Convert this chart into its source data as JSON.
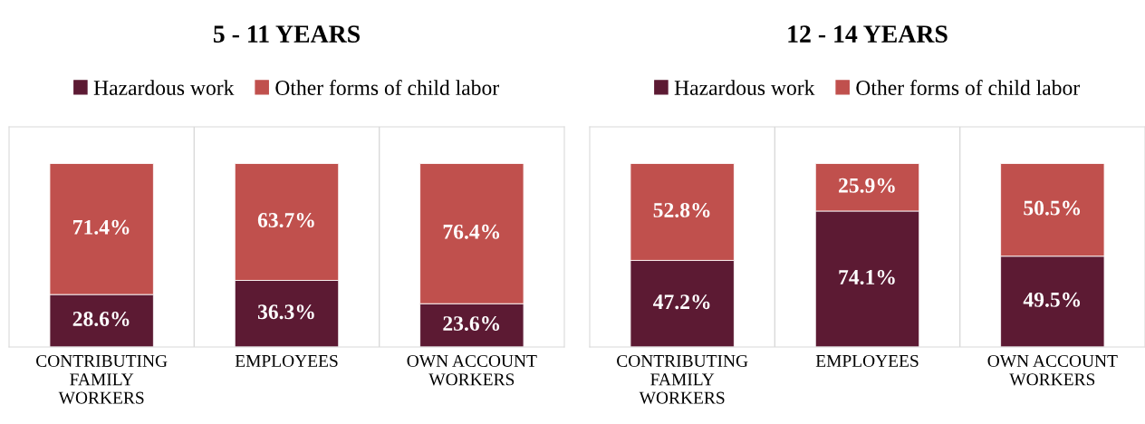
{
  "chart_data": [
    {
      "type": "bar",
      "title": "5 - 11 YEARS",
      "categories": [
        "CONTRIBUTING FAMILY WORKERS",
        "EMPLOYEES",
        "OWN ACCOUNT WORKERS"
      ],
      "stacked": true,
      "tick_labels": "x",
      "grid": "x",
      "legend": "top",
      "series": [
        {
          "name": "Hazardous work",
          "color": "#5c1a33",
          "values": [
            28.6,
            36.3,
            23.6
          ],
          "value_labels": [
            "28.6%",
            "36.3%",
            "23.6%"
          ]
        },
        {
          "name": "Other forms of child labor",
          "color": "#c0504d",
          "values": [
            71.4,
            63.7,
            76.4
          ],
          "value_labels": [
            "71.4%",
            "63.7%",
            "76.4%"
          ]
        }
      ]
    },
    {
      "type": "bar",
      "title": "12 - 14 YEARS",
      "categories": [
        "CONTRIBUTING FAMILY WORKERS",
        "EMPLOYEES",
        "OWN ACCOUNT WORKERS"
      ],
      "stacked": true,
      "tick_labels": "x",
      "grid": "x",
      "legend": "top",
      "series": [
        {
          "name": "Hazardous work",
          "color": "#5c1a33",
          "values": [
            47.2,
            74.1,
            49.5
          ],
          "value_labels": [
            "47.2%",
            "74.1%",
            "49.5%"
          ]
        },
        {
          "name": "Other forms of child labor",
          "color": "#c0504d",
          "values": [
            52.8,
            25.9,
            50.5
          ],
          "value_labels": [
            "52.8%",
            "25.9%",
            "50.5%"
          ]
        }
      ]
    }
  ]
}
